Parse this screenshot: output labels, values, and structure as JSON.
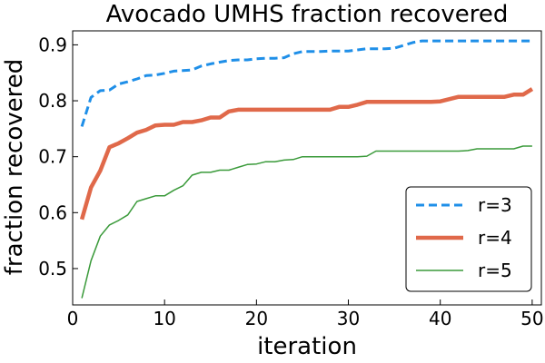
{
  "chart_data": {
    "type": "line",
    "title": "Avocado UMHS fraction recovered",
    "xlabel": "iteration",
    "ylabel": "fraction recovered",
    "xlim": [
      0,
      51
    ],
    "ylim": [
      0.435,
      0.925
    ],
    "xticks": [
      0,
      10,
      20,
      30,
      40,
      50
    ],
    "yticks": [
      0.5,
      0.6,
      0.7,
      0.8,
      0.9
    ],
    "ytick_labels": [
      "0.5",
      "0.6",
      "0.7",
      "0.8",
      "0.9"
    ],
    "grid": false,
    "legend_position": "bottom-right",
    "x": [
      1,
      2,
      3,
      4,
      5,
      6,
      7,
      8,
      9,
      10,
      11,
      12,
      13,
      14,
      15,
      16,
      17,
      18,
      19,
      20,
      21,
      22,
      23,
      24,
      25,
      26,
      27,
      28,
      29,
      30,
      31,
      32,
      33,
      34,
      35,
      36,
      37,
      38,
      39,
      40,
      41,
      42,
      43,
      44,
      45,
      46,
      47,
      48,
      49,
      50
    ],
    "series": [
      {
        "name": "r=3",
        "color": "#1f8fe8",
        "style": "dashed",
        "values": [
          0.754,
          0.806,
          0.818,
          0.819,
          0.83,
          0.834,
          0.839,
          0.845,
          0.846,
          0.849,
          0.853,
          0.854,
          0.855,
          0.862,
          0.866,
          0.869,
          0.872,
          0.873,
          0.873,
          0.875,
          0.876,
          0.876,
          0.877,
          0.884,
          0.888,
          0.888,
          0.888,
          0.889,
          0.889,
          0.889,
          0.891,
          0.893,
          0.893,
          0.893,
          0.894,
          0.899,
          0.904,
          0.907,
          0.907,
          0.907,
          0.907,
          0.907,
          0.907,
          0.907,
          0.907,
          0.907,
          0.907,
          0.907,
          0.907,
          0.907
        ]
      },
      {
        "name": "r=4",
        "color": "#e0694a",
        "style": "solid-thick",
        "values": [
          0.588,
          0.645,
          0.675,
          0.717,
          0.724,
          0.733,
          0.743,
          0.748,
          0.756,
          0.757,
          0.757,
          0.762,
          0.762,
          0.765,
          0.77,
          0.77,
          0.781,
          0.784,
          0.784,
          0.784,
          0.784,
          0.784,
          0.784,
          0.784,
          0.784,
          0.784,
          0.784,
          0.784,
          0.789,
          0.789,
          0.793,
          0.798,
          0.798,
          0.798,
          0.798,
          0.798,
          0.798,
          0.798,
          0.798,
          0.799,
          0.803,
          0.807,
          0.807,
          0.807,
          0.807,
          0.807,
          0.807,
          0.811,
          0.811,
          0.821
        ]
      },
      {
        "name": "r=5",
        "color": "#3a9a3a",
        "style": "solid-thin",
        "values": [
          0.447,
          0.514,
          0.558,
          0.578,
          0.586,
          0.596,
          0.62,
          0.625,
          0.63,
          0.63,
          0.64,
          0.648,
          0.667,
          0.672,
          0.672,
          0.676,
          0.676,
          0.681,
          0.686,
          0.687,
          0.691,
          0.691,
          0.694,
          0.695,
          0.7,
          0.7,
          0.7,
          0.7,
          0.7,
          0.7,
          0.7,
          0.701,
          0.71,
          0.71,
          0.71,
          0.71,
          0.71,
          0.71,
          0.71,
          0.71,
          0.71,
          0.71,
          0.711,
          0.714,
          0.714,
          0.714,
          0.714,
          0.714,
          0.719,
          0.719
        ]
      }
    ]
  }
}
